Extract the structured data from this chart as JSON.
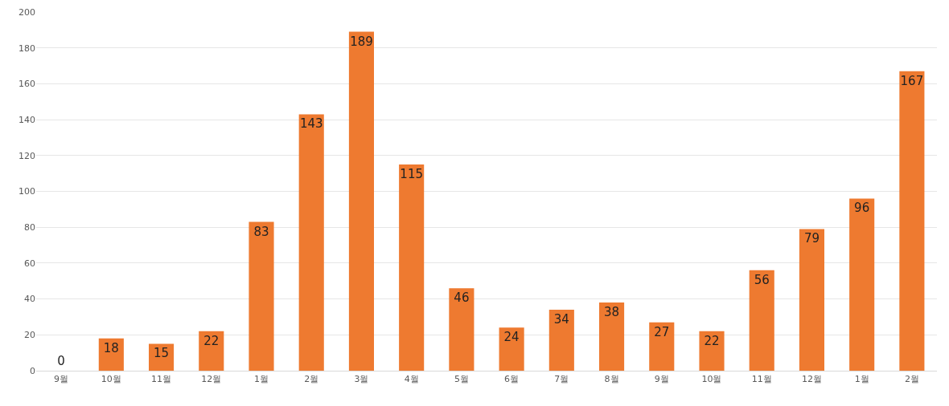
{
  "chart_data": {
    "type": "bar",
    "categories": [
      "9월",
      "10월",
      "11월",
      "12월",
      "1월",
      "2월",
      "3월",
      "4월",
      "5월",
      "6월",
      "7월",
      "8월",
      "9월",
      "10월",
      "11월",
      "12월",
      "1월",
      "2월"
    ],
    "values": [
      0,
      18,
      15,
      22,
      83,
      143,
      189,
      115,
      46,
      24,
      34,
      38,
      27,
      22,
      56,
      79,
      96,
      167
    ],
    "color": "#ee7a30",
    "ylim": [
      0,
      200
    ],
    "yticks": [
      0,
      20,
      40,
      60,
      80,
      100,
      120,
      140,
      160,
      180,
      200
    ],
    "grid": "y",
    "data_labels": true
  }
}
